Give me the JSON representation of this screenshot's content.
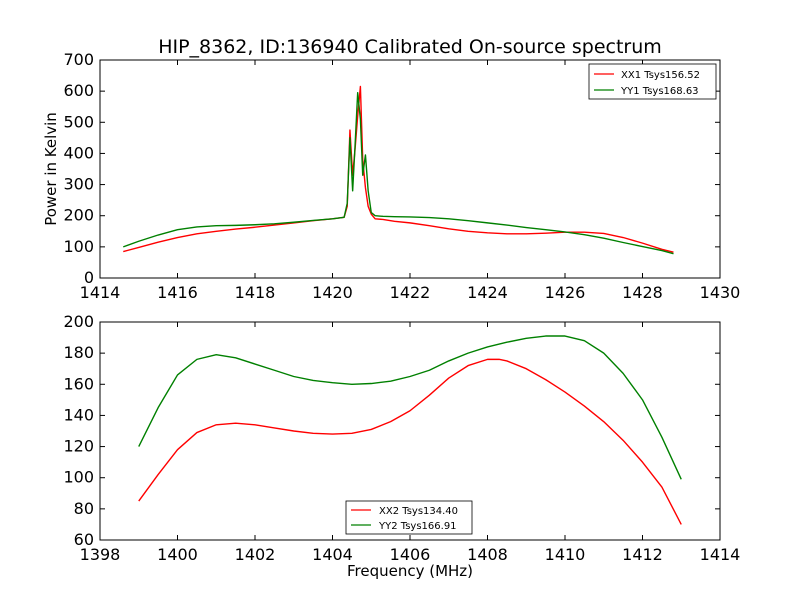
{
  "chart_data": [
    {
      "type": "line",
      "title": "HIP_8362, ID:136940 Calibrated On-source spectrum",
      "xlabel": "",
      "ylabel": "Power in Kelvin",
      "xlim": [
        1414,
        1430
      ],
      "ylim": [
        0,
        700
      ],
      "xticks": [
        1414,
        1416,
        1418,
        1420,
        1422,
        1424,
        1426,
        1428,
        1430
      ],
      "yticks": [
        0,
        100,
        200,
        300,
        400,
        500,
        600,
        700
      ],
      "legend_position": "top-right",
      "grid": false,
      "series": [
        {
          "name": "XX1 Tsys156.52",
          "color": "#ff0000",
          "x": [
            1414.6,
            1415.0,
            1415.5,
            1416.0,
            1416.5,
            1417.0,
            1417.5,
            1418.0,
            1418.5,
            1419.0,
            1419.5,
            1420.0,
            1420.3,
            1420.38,
            1420.45,
            1420.52,
            1420.58,
            1420.65,
            1420.72,
            1420.78,
            1420.85,
            1420.92,
            1421.0,
            1421.1,
            1421.3,
            1421.6,
            1422.0,
            1422.5,
            1423.0,
            1423.5,
            1424.0,
            1424.5,
            1425.0,
            1425.5,
            1426.0,
            1426.5,
            1427.0,
            1427.5,
            1428.0,
            1428.5,
            1428.8
          ],
          "y": [
            85,
            98,
            115,
            130,
            142,
            150,
            157,
            163,
            170,
            177,
            184,
            190,
            195,
            230,
            475,
            330,
            410,
            520,
            615,
            380,
            290,
            230,
            205,
            190,
            188,
            182,
            177,
            168,
            158,
            150,
            145,
            142,
            142,
            144,
            147,
            147,
            143,
            130,
            112,
            92,
            83
          ]
        },
        {
          "name": "YY1 Tsys168.63",
          "color": "#008000",
          "x": [
            1414.6,
            1415.0,
            1415.5,
            1416.0,
            1416.5,
            1417.0,
            1417.5,
            1418.0,
            1418.5,
            1419.0,
            1419.5,
            1420.0,
            1420.3,
            1420.38,
            1420.45,
            1420.52,
            1420.58,
            1420.65,
            1420.72,
            1420.78,
            1420.85,
            1420.92,
            1421.0,
            1421.1,
            1421.3,
            1421.6,
            1422.0,
            1422.5,
            1423.0,
            1423.5,
            1424.0,
            1424.5,
            1425.0,
            1425.5,
            1426.0,
            1426.5,
            1427.0,
            1427.5,
            1428.0,
            1428.5,
            1428.8
          ],
          "y": [
            100,
            118,
            138,
            155,
            164,
            168,
            169,
            171,
            174,
            179,
            185,
            190,
            195,
            240,
            450,
            280,
            420,
            595,
            510,
            330,
            395,
            280,
            210,
            200,
            198,
            197,
            196,
            194,
            190,
            184,
            177,
            170,
            162,
            155,
            148,
            139,
            128,
            114,
            101,
            88,
            78
          ]
        }
      ]
    },
    {
      "type": "line",
      "title": "",
      "xlabel": "Frequency (MHz)",
      "ylabel": "",
      "xlim": [
        1398,
        1414
      ],
      "ylim": [
        60,
        200
      ],
      "xticks": [
        1398,
        1400,
        1402,
        1404,
        1406,
        1408,
        1410,
        1412,
        1414
      ],
      "yticks": [
        60,
        80,
        100,
        120,
        140,
        160,
        180,
        200
      ],
      "legend_position": "lower-center",
      "grid": false,
      "series": [
        {
          "name": "XX2 Tsys134.40",
          "color": "#ff0000",
          "x": [
            1399.0,
            1399.5,
            1400.0,
            1400.5,
            1401.0,
            1401.5,
            1402.0,
            1402.5,
            1403.0,
            1403.5,
            1404.0,
            1404.5,
            1405.0,
            1405.5,
            1406.0,
            1406.5,
            1407.0,
            1407.5,
            1408.0,
            1408.3,
            1408.5,
            1409.0,
            1409.5,
            1410.0,
            1410.5,
            1411.0,
            1411.5,
            1412.0,
            1412.5,
            1413.0
          ],
          "y": [
            85,
            102,
            118,
            129,
            134,
            135,
            134,
            132,
            130,
            128.5,
            128,
            128.5,
            131,
            136,
            143,
            153,
            164,
            172,
            176,
            176,
            175,
            170,
            163,
            155,
            146,
            136,
            124,
            110,
            94,
            70
          ]
        },
        {
          "name": "YY2 Tsys166.91",
          "color": "#008000",
          "x": [
            1399.0,
            1399.5,
            1400.0,
            1400.5,
            1401.0,
            1401.5,
            1402.0,
            1402.5,
            1403.0,
            1403.5,
            1404.0,
            1404.5,
            1405.0,
            1405.5,
            1406.0,
            1406.5,
            1407.0,
            1407.5,
            1408.0,
            1408.5,
            1409.0,
            1409.5,
            1410.0,
            1410.5,
            1411.0,
            1411.5,
            1412.0,
            1412.5,
            1413.0
          ],
          "y": [
            120,
            145,
            166,
            176,
            179,
            177,
            173,
            169,
            165,
            162.5,
            161,
            160,
            160.5,
            162,
            165,
            169,
            175,
            180,
            184,
            187,
            189.5,
            191,
            191,
            188,
            180,
            167,
            150,
            126,
            99
          ]
        }
      ]
    }
  ]
}
